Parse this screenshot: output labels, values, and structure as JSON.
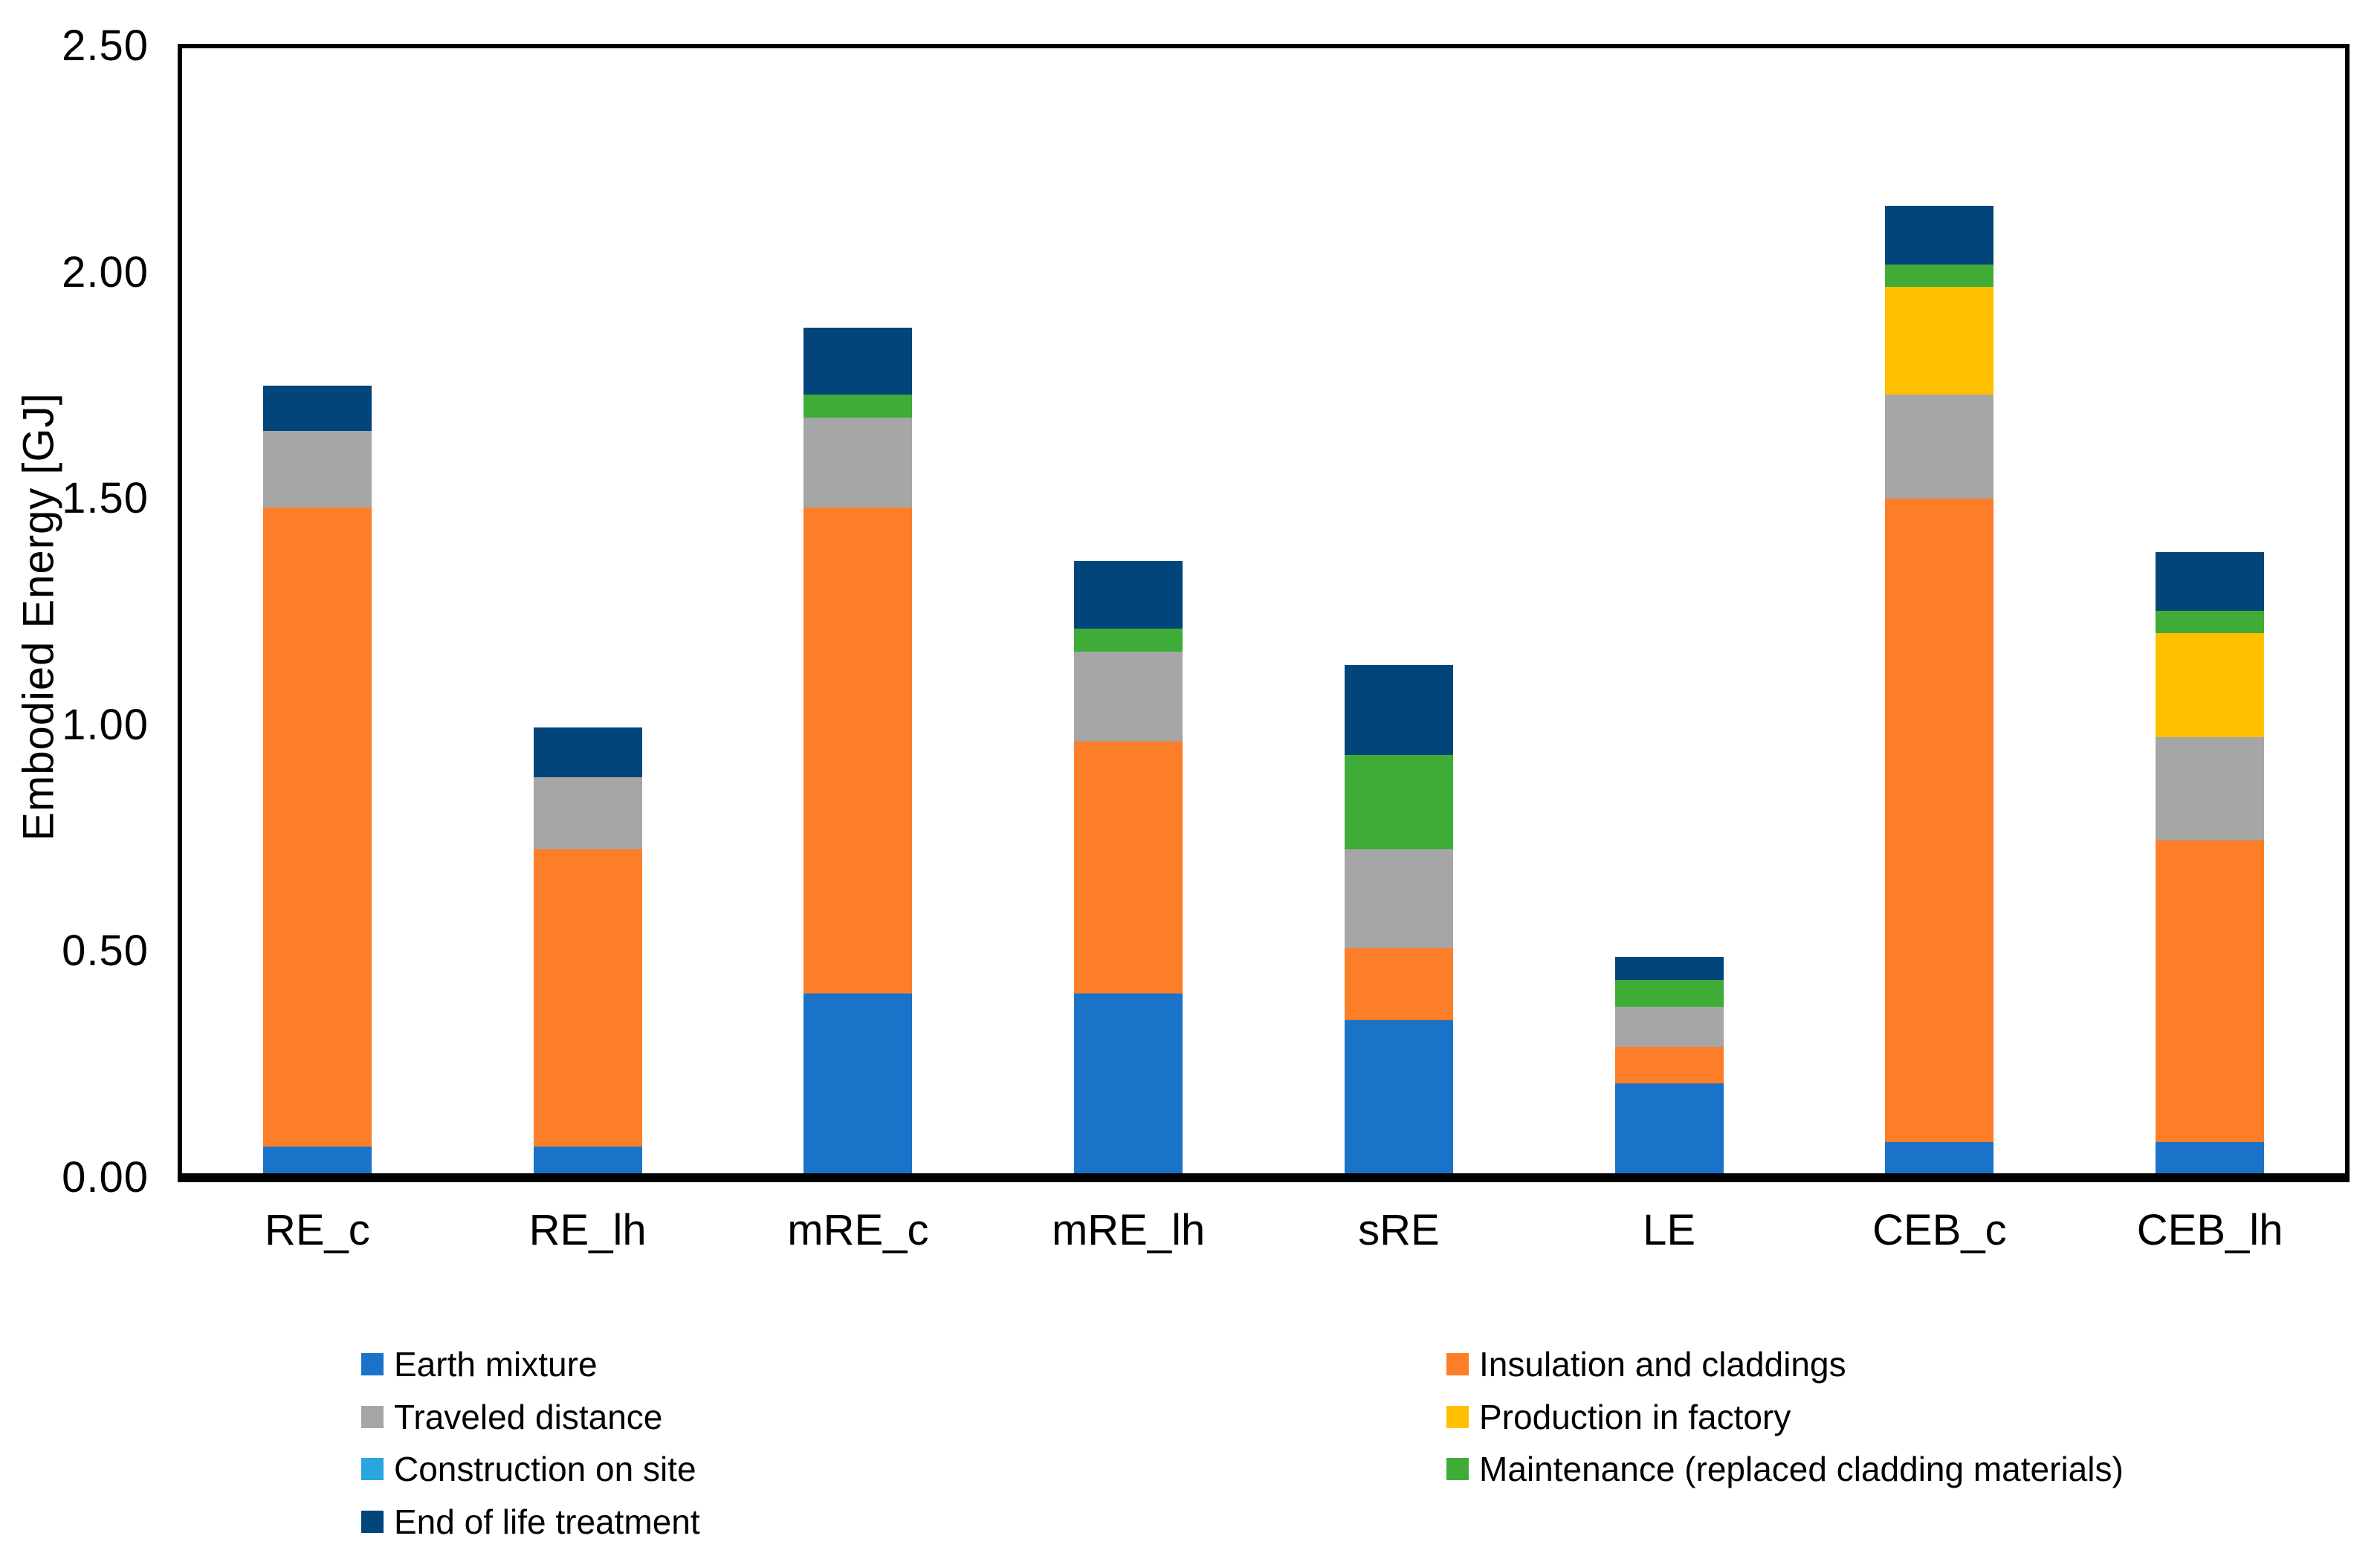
{
  "chart_data": {
    "type": "bar",
    "stacked": true,
    "title": "",
    "xlabel": "",
    "ylabel": "Embodied Energy [GJ]",
    "ylim": [
      0,
      2.5
    ],
    "ytick_step": 0.5,
    "ytick_labels": [
      "0.00",
      "0.50",
      "1.00",
      "1.50",
      "2.00",
      "2.50"
    ],
    "grid": false,
    "legend_position": "bottom",
    "categories": [
      "RE_c",
      "RE_lh",
      "mRE_c",
      "mRE_lh",
      "sRE",
      "LE",
      "CEB_c",
      "CEB_lh"
    ],
    "series": [
      {
        "name": "Earth mixture",
        "color": "#1A73C8",
        "values": [
          0.06,
          0.06,
          0.4,
          0.4,
          0.34,
          0.2,
          0.07,
          0.07
        ]
      },
      {
        "name": "Insulation and claddings",
        "color": "#FD7E28",
        "values": [
          1.42,
          0.66,
          1.08,
          0.56,
          0.16,
          0.08,
          1.43,
          0.67
        ]
      },
      {
        "name": "Traveled distance",
        "color": "#A6A6A6",
        "values": [
          0.17,
          0.16,
          0.2,
          0.2,
          0.22,
          0.09,
          0.23,
          0.23
        ]
      },
      {
        "name": "Production in factory",
        "color": "#FFC000",
        "values": [
          0,
          0,
          0,
          0,
          0,
          0,
          0.24,
          0.23
        ]
      },
      {
        "name": "Construction on site",
        "color": "#2BA5DF",
        "values": [
          0,
          0,
          0,
          0,
          0,
          0,
          0,
          0
        ]
      },
      {
        "name": "Maintenance (replaced cladding materials)",
        "color": "#3FAC38",
        "values": [
          0,
          0,
          0.05,
          0.05,
          0.21,
          0.06,
          0.05,
          0.05
        ]
      },
      {
        "name": "End of life treatment",
        "color": "#02457B",
        "values": [
          0.1,
          0.11,
          0.15,
          0.15,
          0.2,
          0.05,
          0.13,
          0.13
        ]
      }
    ],
    "totals": [
      1.75,
      0.99,
      1.88,
      1.36,
      1.13,
      0.48,
      2.15,
      1.38
    ],
    "legend_columns": [
      [
        "Earth mixture",
        "Traveled distance",
        "Construction on site",
        "End of life treatment"
      ],
      [
        "Insulation and claddings",
        "Production in factory",
        "Maintenance (replaced cladding materials)"
      ]
    ]
  }
}
